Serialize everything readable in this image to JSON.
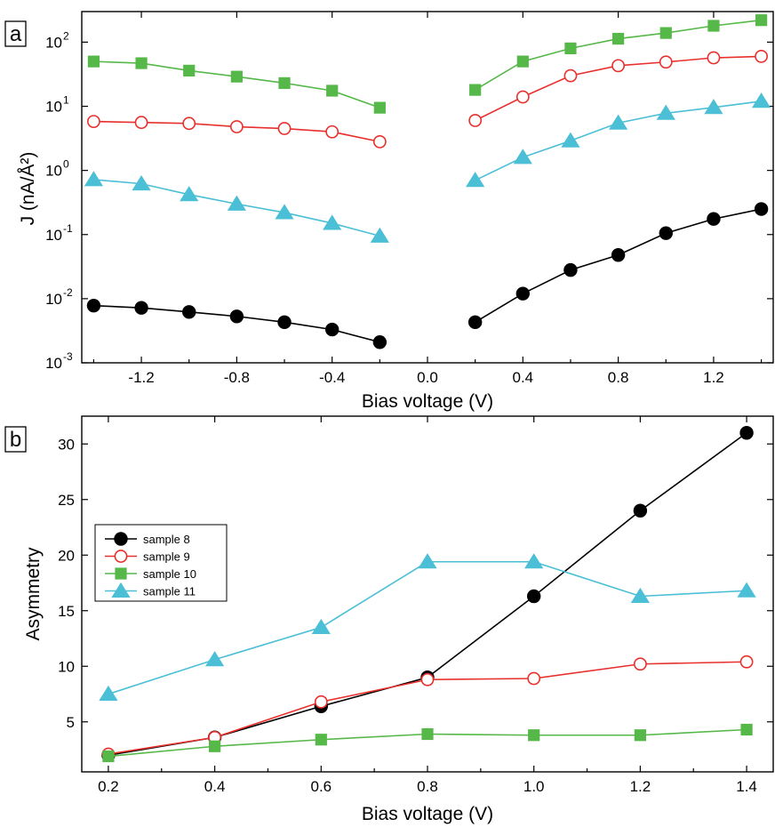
{
  "chart_data": [
    {
      "type": "line",
      "panel_label": "a",
      "xlabel": "Bias voltage (V)",
      "ylabel": "J (nA/Å²)",
      "yscale": "log",
      "xlim": [
        -1.45,
        1.45
      ],
      "ylim": [
        0.001,
        300
      ],
      "x_ticks": [
        -1.2,
        -0.8,
        -0.4,
        0.0,
        0.4,
        0.8,
        1.2
      ],
      "x_tick_labels": [
        "-1.2",
        "-0.8",
        "-0.4",
        "0.0",
        "0.4",
        "0.8",
        "1.2"
      ],
      "y_ticks": [
        0.001,
        0.01,
        0.1,
        1,
        10,
        100
      ],
      "y_tick_labels": [
        {
          "base": "10",
          "exp": "-3"
        },
        {
          "base": "10",
          "exp": "-2"
        },
        {
          "base": "10",
          "exp": "-1"
        },
        {
          "base": "10",
          "exp": "0"
        },
        {
          "base": "10",
          "exp": "1"
        },
        {
          "base": "10",
          "exp": "2"
        }
      ],
      "series": [
        {
          "key": "sample8",
          "color": "#000000",
          "marker": "circle-filled",
          "segments": [
            {
              "x": [
                -1.4,
                -1.2,
                -1.0,
                -0.8,
                -0.6,
                -0.4,
                -0.2
              ],
              "y": [
                0.0078,
                0.0072,
                0.0062,
                0.0053,
                0.0043,
                0.0033,
                0.0021
              ]
            },
            {
              "x": [
                0.2,
                0.4,
                0.6,
                0.8,
                1.0,
                1.2,
                1.4
              ],
              "y": [
                0.0043,
                0.012,
                0.028,
                0.048,
                0.105,
                0.175,
                0.25
              ]
            }
          ]
        },
        {
          "key": "sample9",
          "color": "#e8302c",
          "marker": "circle-open",
          "segments": [
            {
              "x": [
                -1.4,
                -1.2,
                -1.0,
                -0.8,
                -0.6,
                -0.4,
                -0.2
              ],
              "y": [
                5.8,
                5.6,
                5.4,
                4.8,
                4.5,
                4.0,
                2.8
              ]
            },
            {
              "x": [
                0.2,
                0.4,
                0.6,
                0.8,
                1.0,
                1.2,
                1.4
              ],
              "y": [
                6.0,
                14,
                30,
                43,
                49,
                57,
                60
              ]
            }
          ]
        },
        {
          "key": "sample10",
          "color": "#55b848",
          "marker": "square",
          "segments": [
            {
              "x": [
                -1.4,
                -1.2,
                -1.0,
                -0.8,
                -0.6,
                -0.4,
                -0.2
              ],
              "y": [
                50,
                47,
                36,
                29,
                23,
                17.5,
                9.5
              ]
            },
            {
              "x": [
                0.2,
                0.4,
                0.6,
                0.8,
                1.0,
                1.2,
                1.4
              ],
              "y": [
                18,
                50,
                80,
                113,
                139,
                180,
                220
              ]
            }
          ]
        },
        {
          "key": "sample11",
          "color": "#4bbfd6",
          "marker": "triangle",
          "segments": [
            {
              "x": [
                -1.4,
                -1.2,
                -1.0,
                -0.8,
                -0.6,
                -0.4,
                -0.2
              ],
              "y": [
                0.72,
                0.62,
                0.42,
                0.3,
                0.22,
                0.15,
                0.095
              ]
            },
            {
              "x": [
                0.2,
                0.4,
                0.6,
                0.8,
                1.0,
                1.2,
                1.4
              ],
              "y": [
                0.7,
                1.6,
                2.9,
                5.5,
                7.8,
                9.6,
                12
              ]
            }
          ]
        }
      ]
    },
    {
      "type": "line",
      "panel_label": "b",
      "xlabel": "Bias voltage (V)",
      "ylabel": "Asymmetry",
      "xlim": [
        0.15,
        1.45
      ],
      "ylim": [
        0.5,
        32.5
      ],
      "x_ticks": [
        0.2,
        0.4,
        0.6,
        0.8,
        1.0,
        1.2,
        1.4
      ],
      "x_tick_labels": [
        "0.2",
        "0.4",
        "0.6",
        "0.8",
        "1.0",
        "1.2",
        "1.4"
      ],
      "y_ticks": [
        5,
        10,
        15,
        20,
        25,
        30
      ],
      "y_tick_labels": [
        "5",
        "10",
        "15",
        "20",
        "25",
        "30"
      ],
      "legend_position": "middle-left",
      "series": [
        {
          "key": "sample8",
          "name": "sample 8",
          "color": "#000000",
          "marker": "circle-filled",
          "x": [
            0.2,
            0.4,
            0.6,
            0.8,
            1.0,
            1.2,
            1.4
          ],
          "y": [
            2.0,
            3.6,
            6.4,
            9.0,
            16.3,
            24.0,
            31.0
          ]
        },
        {
          "key": "sample9",
          "name": "sample 9",
          "color": "#e8302c",
          "marker": "circle-open",
          "x": [
            0.2,
            0.4,
            0.6,
            0.8,
            1.0,
            1.2,
            1.4
          ],
          "y": [
            2.1,
            3.6,
            6.8,
            8.8,
            8.9,
            10.2,
            10.4
          ]
        },
        {
          "key": "sample10",
          "name": "sample 10",
          "color": "#55b848",
          "marker": "square",
          "x": [
            0.2,
            0.4,
            0.6,
            0.8,
            1.0,
            1.2,
            1.4
          ],
          "y": [
            1.9,
            2.8,
            3.4,
            3.9,
            3.8,
            3.8,
            4.3
          ]
        },
        {
          "key": "sample11",
          "name": "sample 11",
          "color": "#4bbfd6",
          "marker": "triangle",
          "x": [
            0.2,
            0.4,
            0.6,
            0.8,
            1.0,
            1.2,
            1.4
          ],
          "y": [
            7.5,
            10.6,
            13.5,
            19.4,
            19.4,
            16.3,
            16.8
          ]
        }
      ]
    }
  ]
}
